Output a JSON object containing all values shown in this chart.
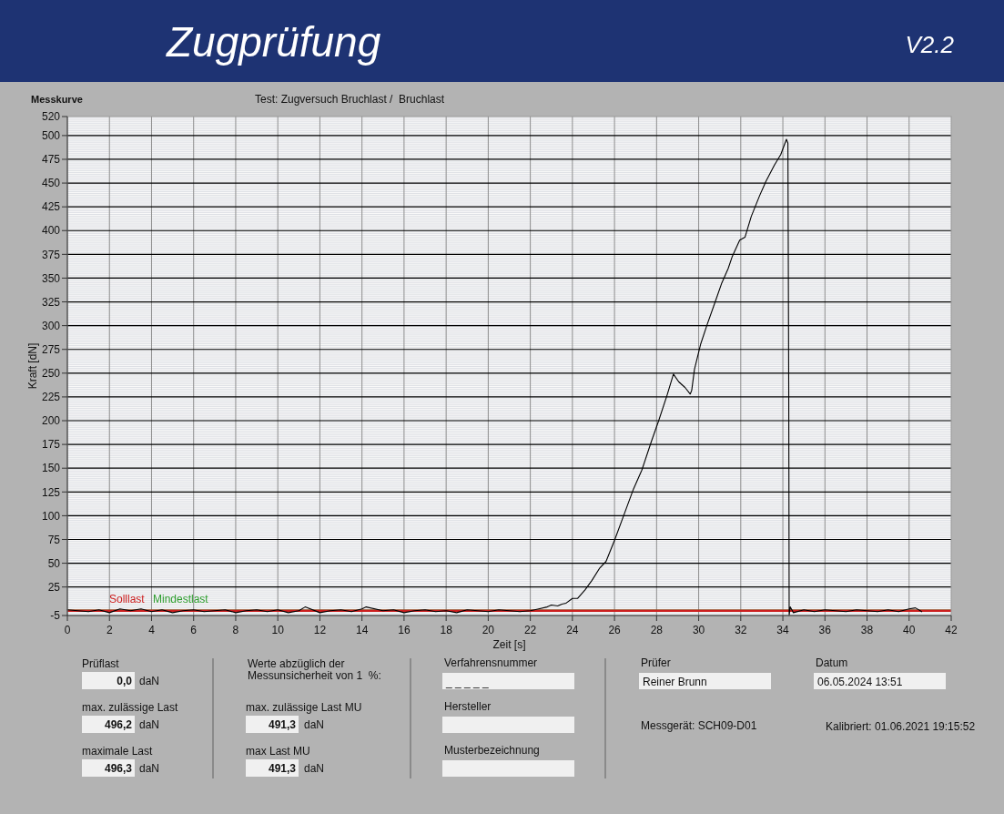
{
  "chart_data": {
    "type": "line",
    "title": "Zugprüfung",
    "subtitle": "Test: Zugversuch Bruchlast /  Bruchlast",
    "xlabel": "Zeit [s]",
    "ylabel": "Kraft [dN]",
    "xlim": [
      0,
      42
    ],
    "xticks": [
      0,
      2,
      4,
      6,
      8,
      10,
      12,
      14,
      16,
      18,
      20,
      22,
      24,
      26,
      28,
      30,
      32,
      34,
      36,
      38,
      40,
      42
    ],
    "ylim": [
      -5,
      520
    ],
    "yticks": [
      -5,
      25,
      50,
      75,
      100,
      125,
      150,
      175,
      200,
      225,
      250,
      275,
      300,
      325,
      350,
      375,
      400,
      425,
      450,
      475,
      500,
      520
    ],
    "grid": true,
    "series": [
      {
        "color": "#000000",
        "x": [
          0,
          0.5,
          1,
          1.5,
          2,
          2.5,
          3,
          3.5,
          4,
          4.5,
          5,
          5.5,
          6,
          6.5,
          7,
          7.5,
          8,
          8.5,
          9,
          9.5,
          10,
          10.5,
          11,
          11.3,
          12,
          12.5,
          13,
          13.5,
          14,
          14.2,
          15,
          15.5,
          16,
          16.5,
          17,
          17.5,
          18,
          18.5,
          19,
          19.5,
          20,
          20.5,
          21,
          21.5,
          22,
          22.4,
          22.8,
          23,
          23.3,
          23.5,
          23.7,
          24,
          24.25,
          24.6,
          24.93,
          25.3,
          25.6,
          26,
          26.45,
          26.9,
          27.3,
          27.75,
          28.1,
          28.5,
          28.8,
          29.05,
          29.35,
          29.6,
          29.67,
          29.8,
          30.1,
          30.4,
          30.8,
          31.1,
          31.4,
          31.6,
          31.95,
          32.2,
          32.5,
          32.9,
          33.2,
          33.6,
          33.9,
          34.17,
          34.24,
          34.28,
          34.3,
          34.35,
          34.5,
          35,
          35.5,
          36,
          36.5,
          37,
          37.5,
          38,
          38.5,
          39,
          39.5,
          40,
          40.3,
          40.6
        ],
        "values": [
          1,
          0,
          -1,
          1,
          -2,
          2,
          0,
          2,
          -1,
          1,
          -2,
          0,
          1,
          -1,
          0,
          1,
          -2,
          0,
          1,
          -1,
          1,
          -2,
          0,
          4,
          -2,
          0,
          1,
          -1,
          2,
          4,
          0,
          1,
          -2,
          0,
          1,
          -1,
          0,
          -2,
          1,
          0,
          -1,
          1,
          0,
          -1,
          0,
          2,
          4,
          6,
          5,
          7,
          8,
          13,
          13,
          22,
          32,
          45,
          52,
          74,
          101,
          128,
          148,
          178,
          200,
          227,
          249,
          241,
          235,
          228,
          232,
          254,
          281,
          301,
          326,
          345,
          360,
          373,
          390,
          393,
          415,
          437,
          452,
          469,
          480,
          496,
          492,
          232,
          -5,
          4,
          -2,
          1,
          -1,
          1,
          0,
          -1,
          1,
          0,
          -1,
          1,
          -1,
          2,
          3,
          -1
        ]
      }
    ],
    "ref_lines": [
      {
        "axis": "y",
        "value": 0,
        "label": "Solllast",
        "color": "#cc1f1f"
      },
      {
        "axis": "y",
        "value": 0,
        "label": "Mindestlast",
        "color": "#2e9e2e"
      }
    ],
    "annotations": [
      "V2.2",
      "Messkurve",
      "Prüflast",
      "0,0",
      "daN",
      "max. zulässige Last",
      "496,2",
      "daN",
      "maximale Last",
      "496,3",
      "daN",
      "Werte abzüglich der\nMessunsicherheit von 1  %:",
      "max. zulässige Last MU",
      "491,3",
      "daN",
      "max Last MU",
      "491,3",
      "daN",
      "Verfahrensnummer",
      "_ _ _ _ _",
      "Hersteller",
      "Musterbezeichnung",
      "Prüfer",
      "Reiner Brunn",
      "Datum",
      "06.05.2024 13:51",
      "Messgerät: SCH09-D01",
      "Kalibriert: 01.06.2021 19:15:52"
    ]
  }
}
